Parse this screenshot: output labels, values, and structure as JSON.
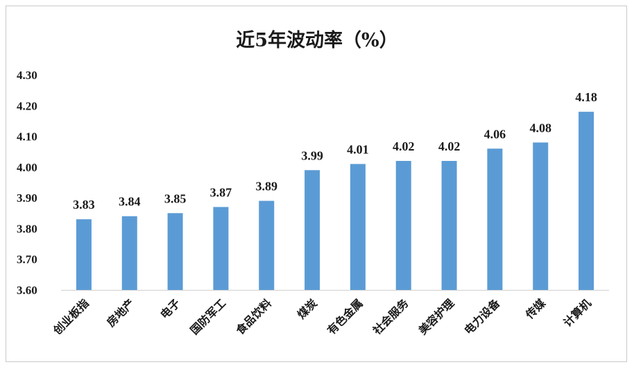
{
  "chart_data": {
    "type": "bar",
    "title": "近5年波动率（%）",
    "categories": [
      "创业板指",
      "房地产",
      "电子",
      "国防军工",
      "食品饮料",
      "煤炭",
      "有色金属",
      "社会服务",
      "美容护理",
      "电力设备",
      "传媒",
      "计算机"
    ],
    "values": [
      3.83,
      3.84,
      3.85,
      3.87,
      3.89,
      3.99,
      4.01,
      4.02,
      4.02,
      4.06,
      4.08,
      4.18
    ],
    "value_labels": [
      "3.83",
      "3.84",
      "3.85",
      "3.87",
      "3.89",
      "3.99",
      "4.01",
      "4.02",
      "4.02",
      "4.06",
      "4.08",
      "4.18"
    ],
    "ylim": [
      3.6,
      4.3
    ],
    "yticks": [
      "3.60",
      "3.70",
      "3.80",
      "3.90",
      "4.00",
      "4.10",
      "4.20",
      "4.30"
    ],
    "xlabel": "",
    "ylabel": "",
    "grid": false,
    "legend": "none",
    "bar_color": "#5b9bd5"
  }
}
